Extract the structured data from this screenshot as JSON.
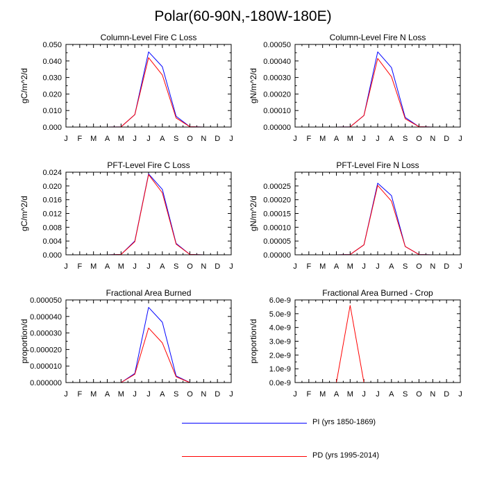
{
  "title": "Polar(60-90N,-180W-180E)",
  "colors": {
    "pi": "#0000ff",
    "pd": "#ff0000",
    "axis": "#000000"
  },
  "legend": [
    {
      "label": "PI (yrs 1850-1869)",
      "color": "#0000ff"
    },
    {
      "label": "PD (yrs 1995-2014)",
      "color": "#ff0000"
    }
  ],
  "chart_data": [
    {
      "type": "line",
      "title": "Column-Level Fire C Loss",
      "ylabel": "gC/m^2/d",
      "xlabel": "",
      "categories": [
        "J",
        "F",
        "M",
        "A",
        "M",
        "J",
        "J",
        "A",
        "S",
        "O",
        "N",
        "D",
        "J"
      ],
      "ylim": [
        0,
        0.05
      ],
      "yticks": [
        "0.000",
        "0.010",
        "0.020",
        "0.030",
        "0.040",
        "0.050"
      ],
      "series": [
        {
          "name": "PI (yrs 1850-1869)",
          "values": [
            0,
            0,
            0,
            0,
            0.0001,
            0.0075,
            0.0455,
            0.0365,
            0.0065,
            0.0002,
            0,
            0,
            0
          ]
        },
        {
          "name": "PD (yrs 1995-2014)",
          "values": [
            0,
            0,
            0,
            0,
            0.0001,
            0.0075,
            0.042,
            0.0315,
            0.0055,
            0.0002,
            0,
            0,
            0
          ]
        }
      ]
    },
    {
      "type": "line",
      "title": "Column-Level Fire N Loss",
      "ylabel": "gN/m^2/d",
      "xlabel": "",
      "categories": [
        "J",
        "F",
        "M",
        "A",
        "M",
        "J",
        "J",
        "A",
        "S",
        "O",
        "N",
        "D",
        "J"
      ],
      "ylim": [
        0,
        0.0005
      ],
      "yticks": [
        "0.00000",
        "0.00010",
        "0.00020",
        "0.00030",
        "0.00040",
        "0.00050"
      ],
      "series": [
        {
          "name": "PI (yrs 1850-1869)",
          "values": [
            0,
            0,
            0,
            0,
            1e-06,
            7e-05,
            0.000455,
            0.00036,
            5.8e-05,
            2e-06,
            0,
            0,
            0
          ]
        },
        {
          "name": "PD (yrs 1995-2014)",
          "values": [
            0,
            0,
            0,
            0,
            1e-06,
            7e-05,
            0.000415,
            0.000305,
            5e-05,
            2e-06,
            0,
            0,
            0
          ]
        }
      ]
    },
    {
      "type": "line",
      "title": "PFT-Level Fire C Loss",
      "ylabel": "gC/m^2/d",
      "xlabel": "",
      "categories": [
        "J",
        "F",
        "M",
        "A",
        "M",
        "J",
        "J",
        "A",
        "S",
        "O",
        "N",
        "D",
        "J"
      ],
      "ylim": [
        0,
        0.024
      ],
      "yticks": [
        "0.000",
        "0.004",
        "0.008",
        "0.012",
        "0.016",
        "0.020",
        "0.024"
      ],
      "series": [
        {
          "name": "PI (yrs 1850-1869)",
          "values": [
            0,
            0,
            0,
            0,
            0.0001,
            0.004,
            0.0235,
            0.019,
            0.0033,
            0.0001,
            0,
            0,
            0
          ]
        },
        {
          "name": "PD (yrs 1995-2014)",
          "values": [
            0,
            0,
            0,
            0,
            0.0001,
            0.0038,
            0.0233,
            0.018,
            0.0031,
            0.0001,
            0,
            0,
            0
          ]
        }
      ]
    },
    {
      "type": "line",
      "title": "PFT-Level Fire N Loss",
      "ylabel": "gN/m^2/d",
      "xlabel": "",
      "categories": [
        "J",
        "F",
        "M",
        "A",
        "M",
        "J",
        "J",
        "A",
        "S",
        "O",
        "N",
        "D",
        "J"
      ],
      "ylim": [
        0,
        0.0003
      ],
      "yticks": [
        "0.00000",
        "0.00005",
        "0.00010",
        "0.00015",
        "0.00020",
        "0.00025"
      ],
      "series": [
        {
          "name": "PI (yrs 1850-1869)",
          "values": [
            0,
            0,
            0,
            0,
            1e-06,
            3.6e-05,
            0.00026,
            0.000215,
            3e-05,
            1e-06,
            0,
            0,
            0
          ]
        },
        {
          "name": "PD (yrs 1995-2014)",
          "values": [
            0,
            0,
            0,
            0,
            1e-06,
            3.6e-05,
            0.000252,
            0.000195,
            3e-05,
            1e-06,
            0,
            0,
            0
          ]
        }
      ]
    },
    {
      "type": "line",
      "title": "Fractional Area Burned",
      "ylabel": "proportion/d",
      "xlabel": "",
      "categories": [
        "J",
        "F",
        "M",
        "A",
        "M",
        "J",
        "J",
        "A",
        "S",
        "O",
        "N",
        "D",
        "J"
      ],
      "ylim": [
        0,
        5e-05
      ],
      "yticks": [
        "0.000000",
        "0.000010",
        "0.000020",
        "0.000030",
        "0.000040",
        "0.000050"
      ],
      "series": [
        {
          "name": "PI (yrs 1850-1869)",
          "values": [
            0,
            0,
            0,
            0,
            0,
            5.5e-06,
            4.55e-05,
            3.65e-05,
            4e-06,
            0,
            0,
            0,
            0
          ]
        },
        {
          "name": "PD (yrs 1995-2014)",
          "values": [
            0,
            0,
            0,
            0,
            0,
            5e-06,
            3.3e-05,
            2.4e-05,
            3.5e-06,
            0,
            0,
            0,
            0
          ]
        }
      ]
    },
    {
      "type": "line",
      "title": "Fractional Area Burned - Crop",
      "ylabel": "proportion/d",
      "xlabel": "",
      "categories": [
        "J",
        "F",
        "M",
        "A",
        "M",
        "J",
        "J",
        "A",
        "S",
        "O",
        "N",
        "D",
        "J"
      ],
      "ylim": [
        0,
        6e-09
      ],
      "yticks": [
        "0.0e-9",
        "1.0e-9",
        "2.0e-9",
        "3.0e-9",
        "4.0e-9",
        "5.0e-9",
        "6.0e-9"
      ],
      "series": [
        {
          "name": "PI (yrs 1850-1869)",
          "values": [
            0,
            0,
            0,
            0,
            0,
            0,
            0,
            0,
            0,
            0,
            0,
            0,
            0
          ]
        },
        {
          "name": "PD (yrs 1995-2014)",
          "values": [
            0,
            0,
            0,
            0,
            5.6e-09,
            0,
            0,
            0,
            0,
            0,
            0,
            0,
            0
          ]
        }
      ]
    }
  ]
}
